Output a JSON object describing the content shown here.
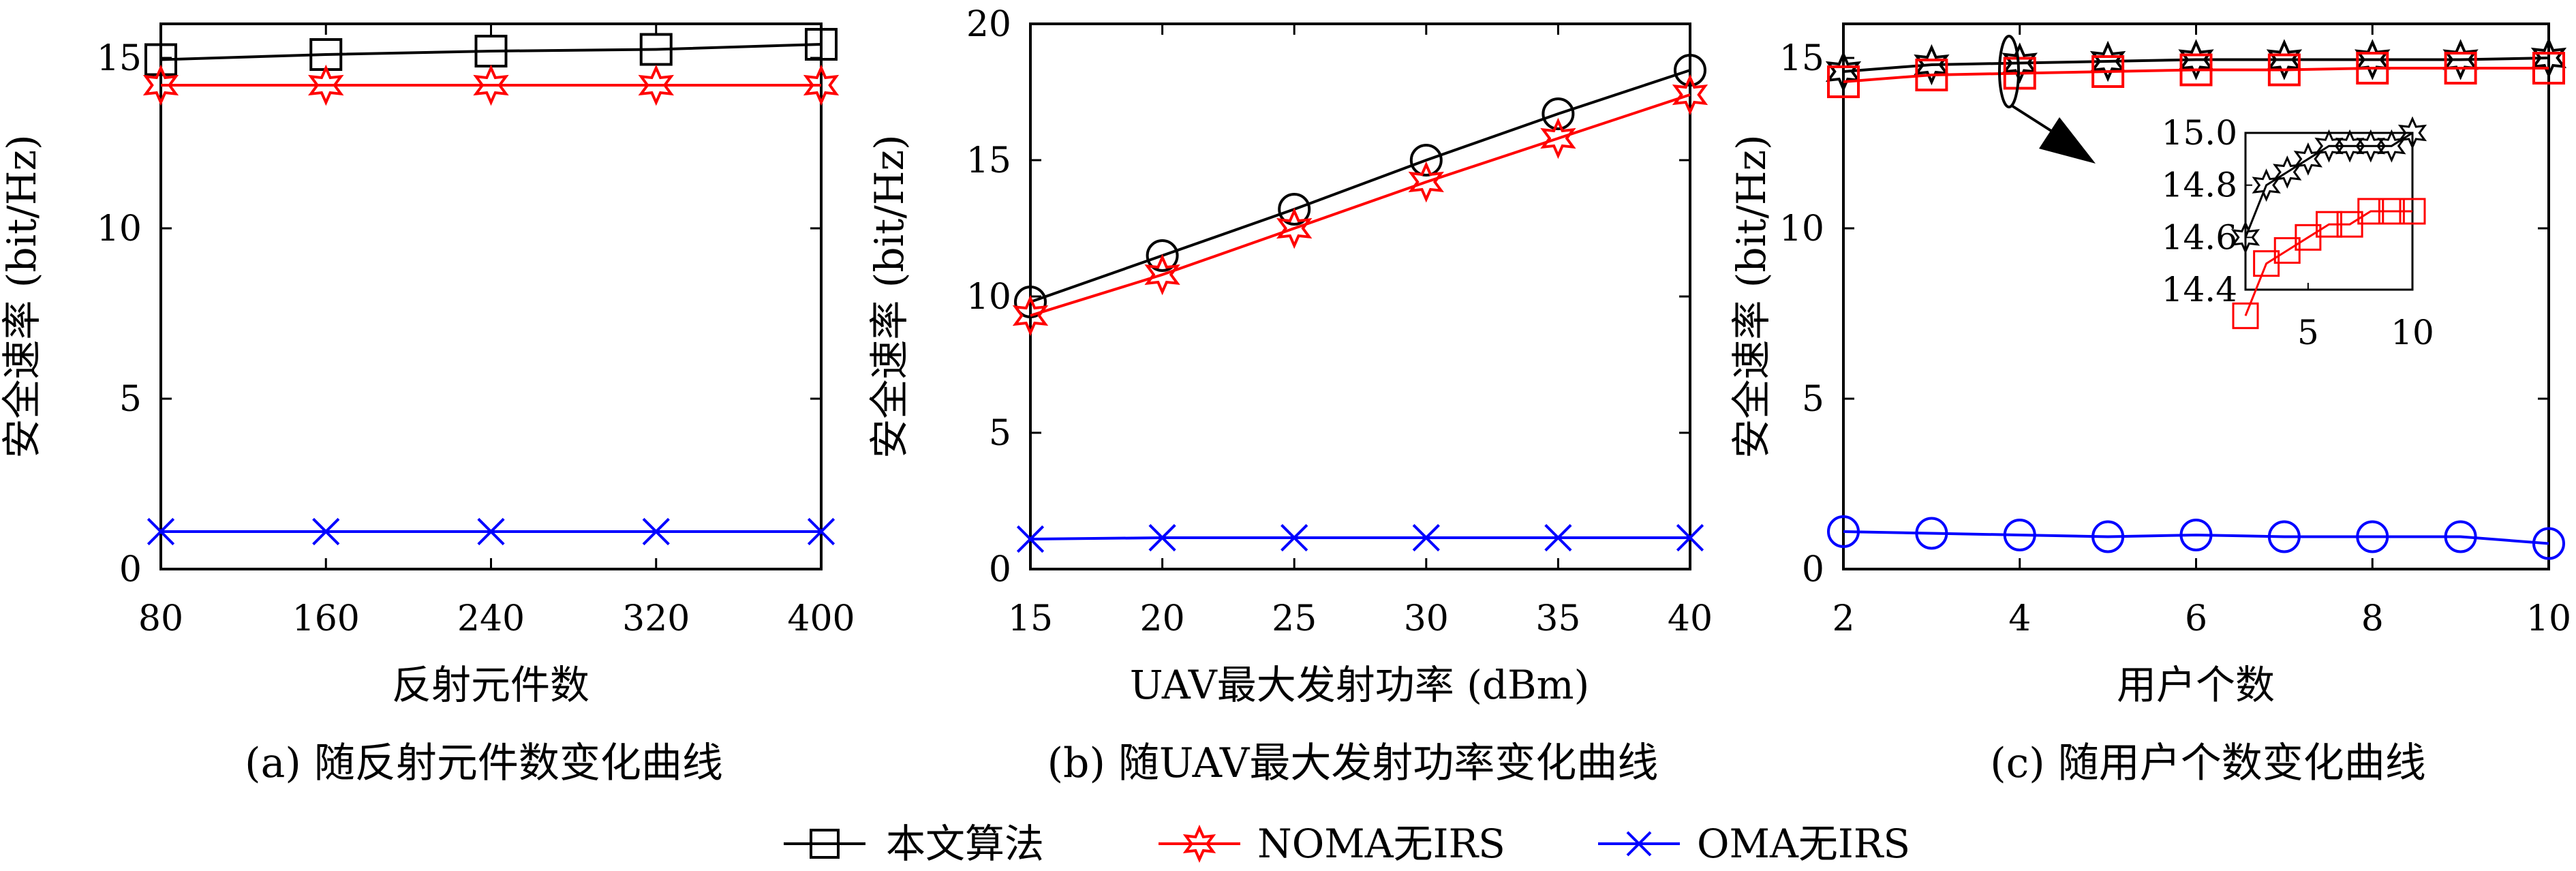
{
  "colors": {
    "series_a": "#000000",
    "series_b": "#ff0000",
    "series_c": "#0000ff"
  },
  "legend": {
    "items": [
      {
        "label": "本文算法",
        "marker": "square",
        "color": "#000000"
      },
      {
        "label": "NOMA无IRS",
        "marker": "star",
        "color": "#ff0000"
      },
      {
        "label": "OMA无IRS",
        "marker": "x",
        "color": "#0000ff"
      }
    ],
    "placement": "bottom-center"
  },
  "chart_data": [
    {
      "type": "line",
      "caption": "(a) 随反射元件数变化曲线",
      "xlabel": "反射元件数",
      "ylabel": "安全速率 (bit/Hz)",
      "x": [
        80,
        160,
        240,
        320,
        400
      ],
      "xticks": [
        "80",
        "160",
        "240",
        "320",
        "400"
      ],
      "xlim": [
        80,
        400
      ],
      "yticks": [
        "0",
        "5",
        "10",
        "15"
      ],
      "ylim": [
        0,
        16
      ],
      "series": [
        {
          "name": "本文算法",
          "marker": "square",
          "color": "#000000",
          "values": [
            14.95,
            15.1,
            15.2,
            15.25,
            15.4
          ]
        },
        {
          "name": "NOMA无IRS",
          "marker": "star",
          "color": "#ff0000",
          "values": [
            14.2,
            14.2,
            14.2,
            14.2,
            14.2
          ]
        },
        {
          "name": "OMA无IRS",
          "marker": "x",
          "color": "#0000ff",
          "values": [
            1.1,
            1.1,
            1.1,
            1.1,
            1.1
          ]
        }
      ]
    },
    {
      "type": "line",
      "caption": "(b) 随UAV最大发射功率变化曲线",
      "xlabel": "UAV最大发射功率 (dBm)",
      "ylabel": "安全速率 (bit/Hz)",
      "x": [
        15,
        20,
        25,
        30,
        35,
        40
      ],
      "xticks": [
        "15",
        "20",
        "25",
        "30",
        "35",
        "40"
      ],
      "xlim": [
        15,
        40
      ],
      "yticks": [
        "0",
        "5",
        "10",
        "15",
        "20"
      ],
      "ylim": [
        0,
        20
      ],
      "series": [
        {
          "name": "本文算法",
          "marker": "circle",
          "color": "#000000",
          "values": [
            9.8,
            11.5,
            13.2,
            15.0,
            16.7,
            18.3
          ]
        },
        {
          "name": "NOMA无IRS",
          "marker": "star",
          "color": "#ff0000",
          "values": [
            9.3,
            10.8,
            12.5,
            14.2,
            15.8,
            17.4
          ]
        },
        {
          "name": "OMA无IRS",
          "marker": "x",
          "color": "#0000ff",
          "values": [
            1.1,
            1.15,
            1.15,
            1.15,
            1.15,
            1.15
          ]
        }
      ]
    },
    {
      "type": "line",
      "caption": "(c) 随用户个数变化曲线",
      "xlabel": "用户个数",
      "ylabel": "安全速率 (bit/Hz)",
      "x": [
        2,
        3,
        4,
        5,
        6,
        7,
        8,
        9,
        10
      ],
      "xticks": [
        "2",
        "4",
        "6",
        "8",
        "10"
      ],
      "xlim": [
        2,
        10
      ],
      "yticks": [
        "0",
        "5",
        "10",
        "15"
      ],
      "ylim": [
        0,
        16
      ],
      "series": [
        {
          "name": "本文算法",
          "marker": "star",
          "color": "#000000",
          "values": [
            14.6,
            14.8,
            14.85,
            14.9,
            14.95,
            14.95,
            14.95,
            14.95,
            15.0
          ]
        },
        {
          "name": "NOMA无IRS",
          "marker": "square",
          "color": "#ff0000",
          "values": [
            14.3,
            14.5,
            14.55,
            14.6,
            14.65,
            14.65,
            14.7,
            14.7,
            14.7
          ]
        },
        {
          "name": "OMA无IRS",
          "marker": "circle",
          "color": "#0000ff",
          "values": [
            1.1,
            1.05,
            1.0,
            0.95,
            1.0,
            0.95,
            0.95,
            0.95,
            0.75
          ]
        }
      ],
      "inset": {
        "xticks": [
          "5",
          "10"
        ],
        "xlim": [
          2,
          10
        ],
        "yticks": [
          "14.4",
          "14.6",
          "14.8",
          "15.0"
        ],
        "ylim": [
          14.4,
          15.0
        ]
      }
    }
  ]
}
